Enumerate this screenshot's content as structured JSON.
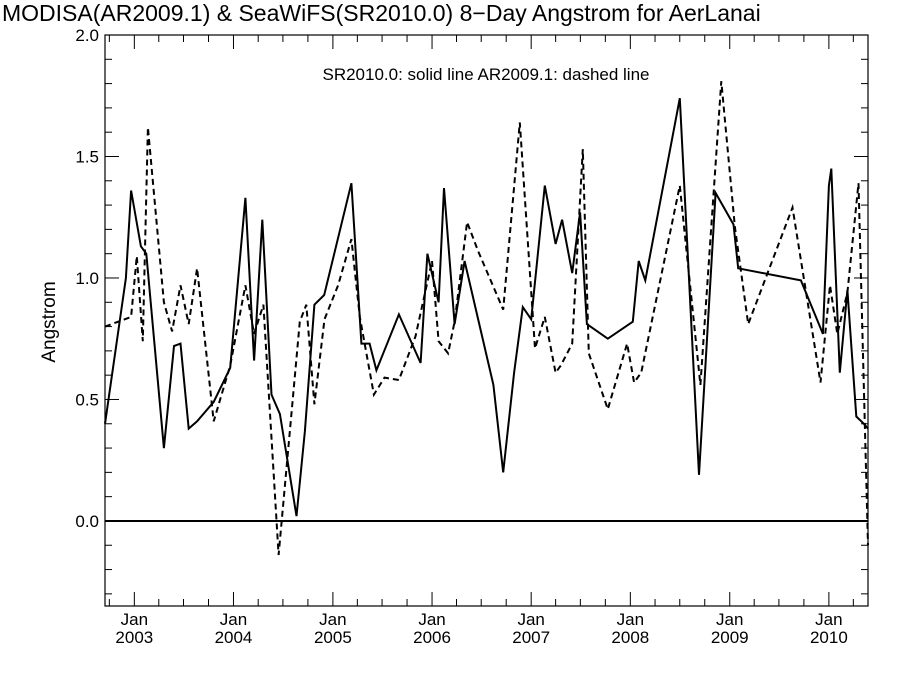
{
  "chart_data": {
    "type": "line",
    "title": "MODISA(AR2009.1) & SeaWiFS(SR2010.0) 8−Day Angstrom for AerLanai",
    "annotation": "SR2010.0: solid line   AR2009.1: dashed line",
    "xlabel": "",
    "ylabel": "Angstrom",
    "ylim": [
      -0.35,
      2.0
    ],
    "xlim": [
      "2002-09-15",
      "2010-05-25"
    ],
    "y_ticks": [
      {
        "value": 0.0,
        "label": "0.0"
      },
      {
        "value": 0.5,
        "label": "0.5"
      },
      {
        "value": 1.0,
        "label": "1.0"
      },
      {
        "value": 1.5,
        "label": "1.5"
      },
      {
        "value": 2.0,
        "label": "2.0"
      }
    ],
    "x_ticks": [
      {
        "date": "2003-01-01",
        "month": "Jan",
        "year": "2003"
      },
      {
        "date": "2004-01-01",
        "month": "Jan",
        "year": "2004"
      },
      {
        "date": "2005-01-01",
        "month": "Jan",
        "year": "2005"
      },
      {
        "date": "2006-01-01",
        "month": "Jan",
        "year": "2006"
      },
      {
        "date": "2007-01-01",
        "month": "Jan",
        "year": "2007"
      },
      {
        "date": "2008-01-01",
        "month": "Jan",
        "year": "2008"
      },
      {
        "date": "2009-01-01",
        "month": "Jan",
        "year": "2009"
      },
      {
        "date": "2010-01-01",
        "month": "Jan",
        "year": "2010"
      }
    ],
    "reference_line": {
      "y": 0.0
    },
    "grid": false,
    "series": [
      {
        "name": "SR2010.0",
        "style": "solid",
        "color": "#000000",
        "points": [
          [
            "2002-09-15",
            0.4
          ],
          [
            "2002-12-01",
            1.0
          ],
          [
            "2002-12-20",
            1.36
          ],
          [
            "2003-01-25",
            1.13
          ],
          [
            "2003-02-14",
            1.1
          ],
          [
            "2003-04-20",
            0.3
          ],
          [
            "2003-05-27",
            0.72
          ],
          [
            "2003-06-20",
            0.73
          ],
          [
            "2003-07-20",
            0.38
          ],
          [
            "2003-08-20",
            0.41
          ],
          [
            "2003-10-20",
            0.49
          ],
          [
            "2003-12-20",
            0.63
          ],
          [
            "2004-02-14",
            1.33
          ],
          [
            "2004-03-17",
            0.66
          ],
          [
            "2004-04-16",
            1.24
          ],
          [
            "2004-05-20",
            0.52
          ],
          [
            "2004-06-20",
            0.44
          ],
          [
            "2004-08-20",
            0.02
          ],
          [
            "2004-09-20",
            0.37
          ],
          [
            "2004-10-25",
            0.89
          ],
          [
            "2004-11-30",
            0.93
          ],
          [
            "2005-03-10",
            1.39
          ],
          [
            "2005-04-16",
            0.73
          ],
          [
            "2005-05-16",
            0.73
          ],
          [
            "2005-06-10",
            0.62
          ],
          [
            "2005-09-01",
            0.85
          ],
          [
            "2005-11-20",
            0.65
          ],
          [
            "2005-12-15",
            1.1
          ],
          [
            "2006-01-25",
            0.9
          ],
          [
            "2006-02-14",
            1.37
          ],
          [
            "2006-03-25",
            0.81
          ],
          [
            "2006-05-01",
            1.07
          ],
          [
            "2006-08-15",
            0.56
          ],
          [
            "2006-09-20",
            0.2
          ],
          [
            "2006-10-30",
            0.61
          ],
          [
            "2006-12-01",
            0.88
          ],
          [
            "2007-01-01",
            0.83
          ],
          [
            "2007-02-20",
            1.38
          ],
          [
            "2007-04-01",
            1.14
          ],
          [
            "2007-04-25",
            1.24
          ],
          [
            "2007-06-01",
            1.02
          ],
          [
            "2007-06-30",
            1.27
          ],
          [
            "2007-07-25",
            0.81
          ],
          [
            "2007-10-10",
            0.75
          ],
          [
            "2008-01-10",
            0.82
          ],
          [
            "2008-02-01",
            1.07
          ],
          [
            "2008-02-25",
            0.99
          ],
          [
            "2008-07-01",
            1.74
          ],
          [
            "2008-09-10",
            0.19
          ],
          [
            "2008-11-10",
            1.35
          ],
          [
            "2009-01-15",
            1.22
          ],
          [
            "2009-02-01",
            1.04
          ],
          [
            "2009-09-20",
            0.99
          ],
          [
            "2009-12-10",
            0.77
          ],
          [
            "2010-01-01",
            1.38
          ],
          [
            "2010-01-10",
            1.45
          ],
          [
            "2010-02-10",
            0.61
          ],
          [
            "2010-03-10",
            0.95
          ],
          [
            "2010-04-12",
            0.43
          ],
          [
            "2010-05-10",
            0.4
          ],
          [
            "2010-05-25",
            0.38
          ]
        ]
      },
      {
        "name": "AR2009.1",
        "style": "dashed",
        "color": "#000000",
        "points": [
          [
            "2002-09-15",
            0.8
          ],
          [
            "2002-12-20",
            0.84
          ],
          [
            "2003-01-10",
            1.09
          ],
          [
            "2003-02-01",
            0.74
          ],
          [
            "2003-02-20",
            1.62
          ],
          [
            "2003-04-20",
            0.9
          ],
          [
            "2003-05-20",
            0.78
          ],
          [
            "2003-06-20",
            0.97
          ],
          [
            "2003-07-20",
            0.81
          ],
          [
            "2003-08-20",
            1.04
          ],
          [
            "2003-10-20",
            0.41
          ],
          [
            "2003-12-20",
            0.64
          ],
          [
            "2004-02-14",
            0.97
          ],
          [
            "2004-03-17",
            0.77
          ],
          [
            "2004-04-20",
            0.89
          ],
          [
            "2004-06-15",
            -0.14
          ],
          [
            "2004-09-01",
            0.82
          ],
          [
            "2004-09-25",
            0.89
          ],
          [
            "2004-10-25",
            0.48
          ],
          [
            "2004-12-01",
            0.83
          ],
          [
            "2005-01-20",
            0.97
          ],
          [
            "2005-03-10",
            1.16
          ],
          [
            "2005-04-10",
            0.84
          ],
          [
            "2005-06-01",
            0.52
          ],
          [
            "2005-07-10",
            0.59
          ],
          [
            "2005-09-01",
            0.58
          ],
          [
            "2005-11-01",
            0.76
          ],
          [
            "2006-01-01",
            1.07
          ],
          [
            "2006-01-25",
            0.74
          ],
          [
            "2006-03-01",
            0.69
          ],
          [
            "2006-03-25",
            0.82
          ],
          [
            "2006-05-10",
            1.23
          ],
          [
            "2006-06-20",
            1.11
          ],
          [
            "2006-09-20",
            0.87
          ],
          [
            "2006-11-20",
            1.64
          ],
          [
            "2007-01-15",
            0.71
          ],
          [
            "2007-02-20",
            0.84
          ],
          [
            "2007-04-01",
            0.61
          ],
          [
            "2007-04-20",
            0.64
          ],
          [
            "2007-06-01",
            0.73
          ],
          [
            "2007-07-10",
            1.53
          ],
          [
            "2007-08-01",
            0.69
          ],
          [
            "2007-10-10",
            0.46
          ],
          [
            "2007-12-20",
            0.73
          ],
          [
            "2008-01-15",
            0.57
          ],
          [
            "2008-02-10",
            0.61
          ],
          [
            "2008-07-01",
            1.38
          ],
          [
            "2008-09-15",
            0.56
          ],
          [
            "2008-12-01",
            1.81
          ],
          [
            "2009-01-20",
            1.21
          ],
          [
            "2009-03-10",
            0.81
          ],
          [
            "2009-08-20",
            1.29
          ],
          [
            "2009-12-01",
            0.57
          ],
          [
            "2010-01-05",
            0.97
          ],
          [
            "2010-02-01",
            0.77
          ],
          [
            "2010-03-10",
            0.94
          ],
          [
            "2010-04-20",
            1.39
          ],
          [
            "2010-05-25",
            -0.1
          ]
        ]
      }
    ]
  }
}
